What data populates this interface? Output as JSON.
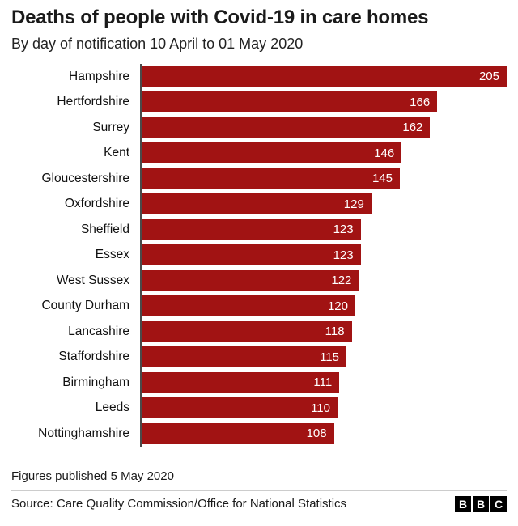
{
  "header": {
    "title": "Deaths of people with Covid-19 in care homes",
    "subtitle": "By day of notification 10 April to 01 May 2020"
  },
  "chart_data": {
    "type": "bar",
    "orientation": "horizontal",
    "title": "Deaths of people with Covid-19 in care homes",
    "subtitle": "By day of notification 10 April to 01 May 2020",
    "categories": [
      "Hampshire",
      "Hertfordshire",
      "Surrey",
      "Kent",
      "Gloucestershire",
      "Oxfordshire",
      "Sheffield",
      "Essex",
      "West Sussex",
      "County Durham",
      "Lancashire",
      "Staffordshire",
      "Birmingham",
      "Leeds",
      "Nottinghamshire"
    ],
    "values": [
      205,
      166,
      162,
      146,
      145,
      129,
      123,
      123,
      122,
      120,
      118,
      115,
      111,
      110,
      108
    ],
    "xlabel": "",
    "ylabel": "",
    "xlim": [
      0,
      205
    ],
    "bar_color": "#a11313",
    "value_label_color": "#ffffff",
    "grid": false,
    "legend": false
  },
  "footer": {
    "published": "Figures published 5 May 2020",
    "source": "Source: Care Quality Commission/Office for National Statistics",
    "logo_blocks": [
      "B",
      "B",
      "C"
    ]
  }
}
